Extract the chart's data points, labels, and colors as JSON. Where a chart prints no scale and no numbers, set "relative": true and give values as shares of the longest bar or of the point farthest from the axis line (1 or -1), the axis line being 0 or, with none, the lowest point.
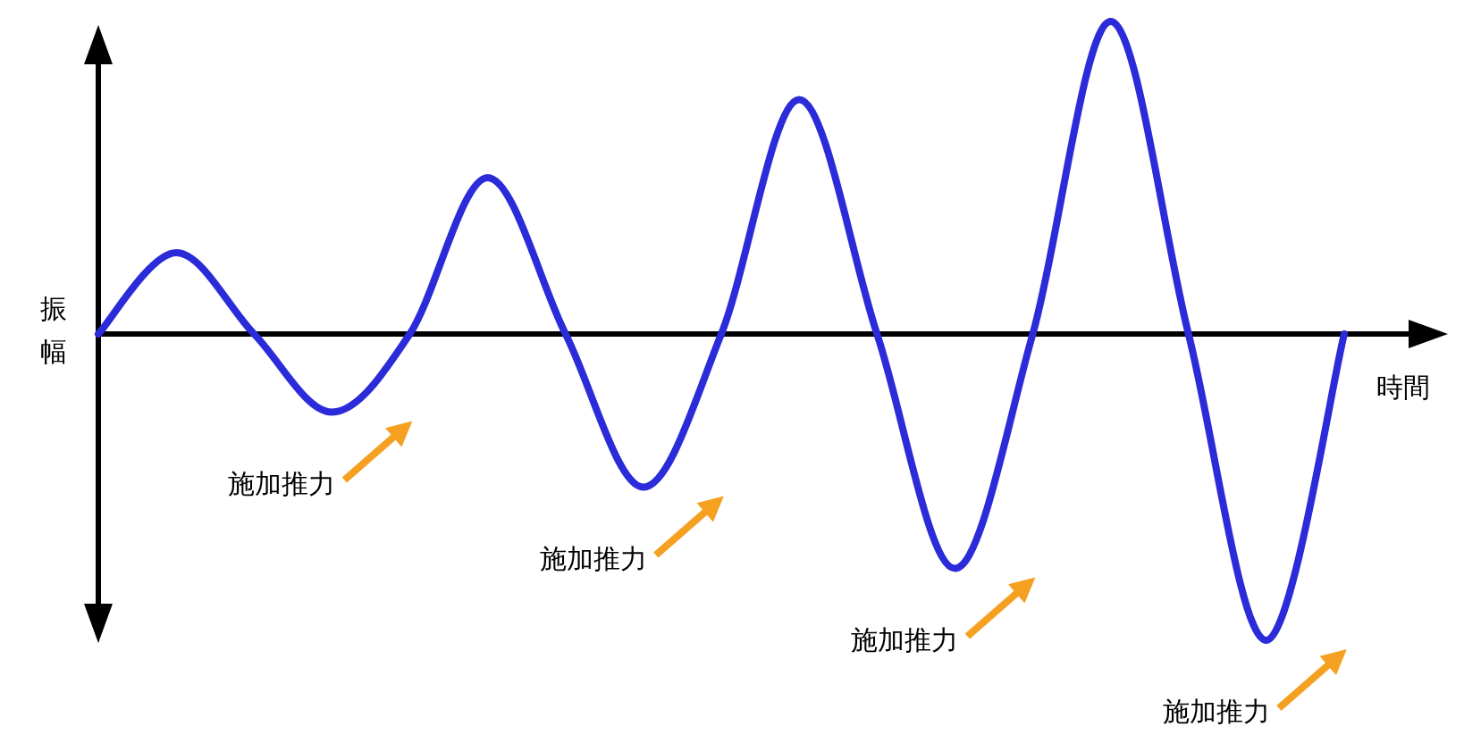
{
  "chart_data": {
    "type": "line",
    "relative": true,
    "xlabel": "時間",
    "ylabel": "振幅",
    "categories": [
      null,
      null,
      null,
      null,
      null,
      null,
      null,
      null,
      null,
      null,
      null,
      null,
      null,
      null,
      null,
      null,
      null
    ],
    "series": [
      {
        "color": "#2b2bd9",
        "values": [
          0,
          0.26,
          0,
          -0.25,
          0,
          0.5,
          0,
          -0.49,
          0,
          0.75,
          0,
          -0.75,
          0,
          1,
          0,
          -0.98,
          0
        ]
      }
    ],
    "annotations": [
      "施加推力",
      "施加推力",
      "施加推力",
      "施加推力"
    ]
  }
}
